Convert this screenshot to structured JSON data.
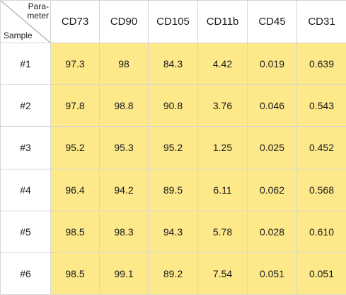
{
  "table": {
    "corner": {
      "top_label_line1": "Para-",
      "top_label_line2": "meter",
      "bottom_label": "Sample"
    },
    "columns": [
      "CD73",
      "CD90",
      "CD105",
      "CD11b",
      "CD45",
      "CD31"
    ],
    "rows": [
      {
        "label": "#1",
        "values": [
          "97.3",
          "98",
          "84.3",
          "4.42",
          "0.019",
          "0.639"
        ]
      },
      {
        "label": "#2",
        "values": [
          "97.8",
          "98.8",
          "90.8",
          "3.76",
          "0.046",
          "0.543"
        ]
      },
      {
        "label": "#3",
        "values": [
          "95.2",
          "95.3",
          "95.2",
          "1.25",
          "0.025",
          "0.452"
        ]
      },
      {
        "label": "#4",
        "values": [
          "96.4",
          "94.2",
          "89.5",
          "6.11",
          "0.062",
          "0.568"
        ]
      },
      {
        "label": "#5",
        "values": [
          "98.5",
          "98.3",
          "94.3",
          "5.78",
          "0.028",
          "0.610"
        ]
      },
      {
        "label": "#6",
        "values": [
          "98.5",
          "99.1",
          "89.2",
          "7.54",
          "0.051",
          "0.051"
        ]
      }
    ],
    "colors": {
      "cell_fill": "#fde98a",
      "header_fill": "#ffffff",
      "border": "#d6d6d6",
      "text": "#1a1a1a"
    }
  }
}
